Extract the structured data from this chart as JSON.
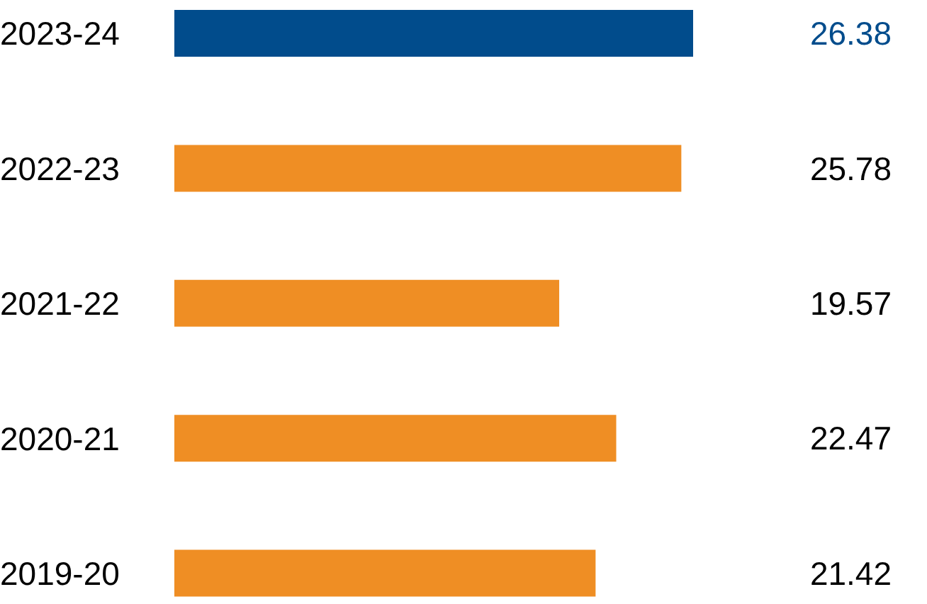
{
  "chart_data": {
    "type": "bar",
    "orientation": "horizontal",
    "categories": [
      "2023-24",
      "2022-23",
      "2021-22",
      "2020-21",
      "2019-20"
    ],
    "values": [
      26.38,
      25.78,
      19.57,
      22.47,
      21.42
    ],
    "colors": [
      "#014c8c",
      "#ef8e24",
      "#ef8e24",
      "#ef8e24",
      "#ef8e24"
    ],
    "data_labels": true
  }
}
